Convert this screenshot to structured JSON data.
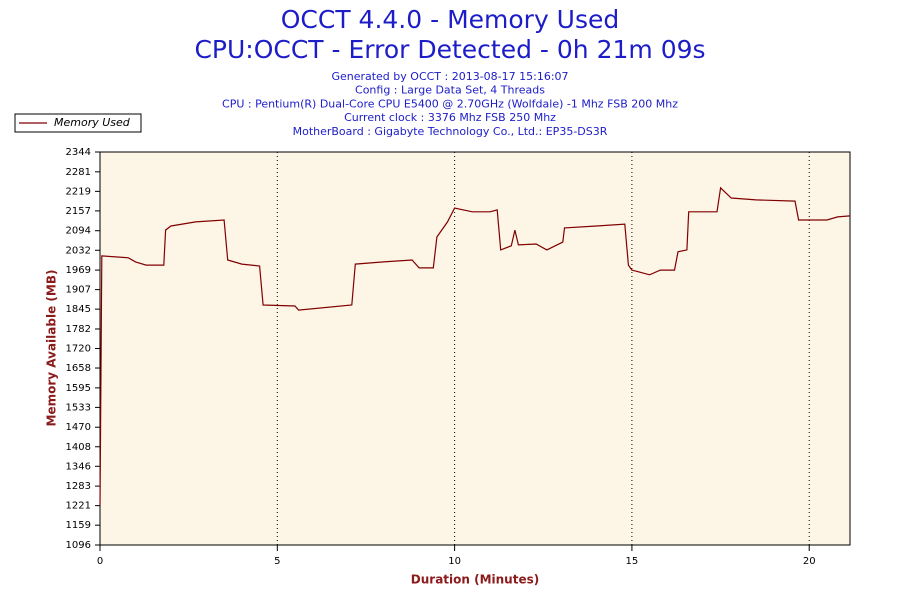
{
  "chart_data": {
    "type": "line",
    "title": "OCCT 4.4.0 - Memory Used",
    "subtitle": "CPU:OCCT - Error Detected - 0h 21m 09s",
    "info": [
      "Generated by OCCT : 2013-08-17 15:16:07",
      "Config : Large Data Set, 4 Threads",
      "CPU : Pentium(R) Dual-Core CPU E5400 @ 2.70GHz (Wolfdale) -1 Mhz FSB 200 Mhz",
      "Current clock : 3376 Mhz FSB 250 Mhz",
      "MotherBoard : Gigabyte Technology Co., Ltd.: EP35-DS3R"
    ],
    "xlabel": "Duration (Minutes)",
    "ylabel": "Memory Available (MB)",
    "legend": "top-left",
    "grid": true,
    "xlim": [
      0,
      21.15
    ],
    "xticks": [
      0,
      5,
      10,
      15,
      20
    ],
    "ylim": [
      1096,
      2344
    ],
    "yticks": [
      1096,
      1159,
      1221,
      1283,
      1346,
      1408,
      1470,
      1533,
      1595,
      1658,
      1720,
      1782,
      1845,
      1907,
      1969,
      2032,
      2094,
      2157,
      2219,
      2281,
      2344
    ],
    "series": [
      {
        "name": "Memory Used",
        "color": "#800000",
        "x": [
          0,
          0.05,
          0.8,
          1.0,
          1.3,
          1.8,
          1.85,
          2.0,
          2.7,
          3.5,
          3.6,
          4.0,
          4.5,
          4.6,
          5.5,
          5.6,
          7.1,
          7.2,
          8.0,
          8.8,
          9.0,
          9.4,
          9.5,
          9.8,
          10.0,
          10.5,
          11.0,
          11.2,
          11.3,
          11.6,
          11.7,
          11.8,
          12.3,
          12.6,
          13.05,
          13.1,
          14.0,
          14.8,
          14.9,
          15.0,
          15.5,
          15.8,
          16.2,
          16.3,
          16.55,
          16.6,
          17.4,
          17.5,
          17.8,
          18.5,
          19.6,
          19.7,
          20.5,
          20.8,
          21.15
        ],
        "values": [
          1221,
          2014,
          2008,
          1995,
          1985,
          1985,
          2096,
          2109,
          2122,
          2128,
          2001,
          1988,
          1982,
          1858,
          1855,
          1842,
          1858,
          1988,
          1995,
          2001,
          1976,
          1976,
          2074,
          2122,
          2166,
          2154,
          2154,
          2160,
          2033,
          2046,
          2096,
          2049,
          2052,
          2033,
          2058,
          2103,
          2109,
          2115,
          1985,
          1969,
          1954,
          1969,
          1969,
          2027,
          2033,
          2154,
          2154,
          2230,
          2198,
          2192,
          2188,
          2128,
          2128,
          2138,
          2141
        ]
      }
    ]
  }
}
